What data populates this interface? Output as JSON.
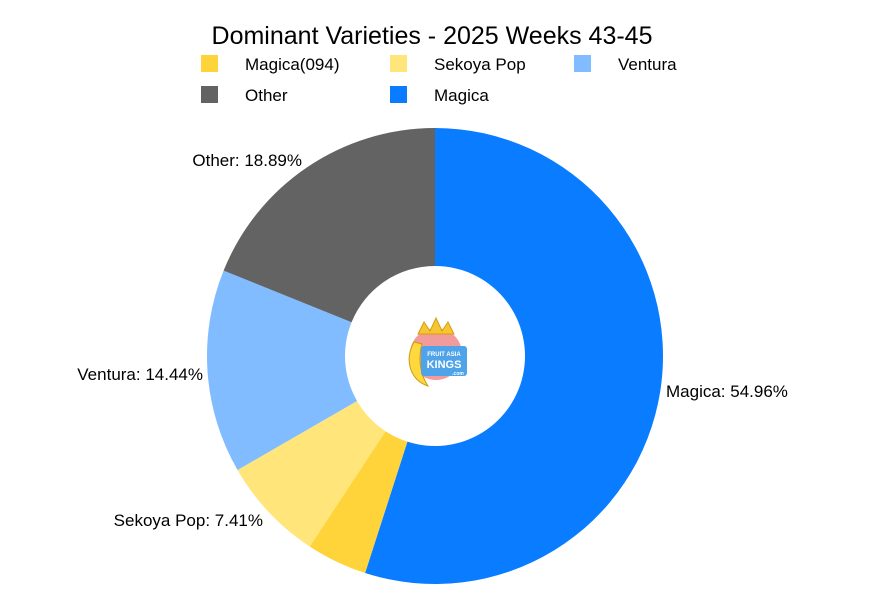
{
  "chart_data": {
    "type": "pie",
    "title": "Dominant Varieties - 2025 Weeks 43-45",
    "donut": true,
    "legend_position": "top",
    "legend": [
      {
        "name": "Magica(094)",
        "color": "#ffd43b"
      },
      {
        "name": "Sekoya Pop",
        "color": "#ffe57a"
      },
      {
        "name": "Ventura",
        "color": "#80bcff"
      },
      {
        "name": "Other",
        "color": "#636363"
      },
      {
        "name": "Magica",
        "color": "#0a7cff"
      }
    ],
    "slices": [
      {
        "name": "Magica",
        "value": 54.96,
        "color": "#0a7cff",
        "label": "Magica: 54.96%"
      },
      {
        "name": "Magica(094)",
        "value": 4.3,
        "color": "#ffd43b",
        "label": ""
      },
      {
        "name": "Sekoya Pop",
        "value": 7.41,
        "color": "#ffe57a",
        "label": "Sekoya Pop: 7.41%"
      },
      {
        "name": "Ventura",
        "value": 14.44,
        "color": "#80bcff",
        "label": "Ventura: 14.44%"
      },
      {
        "name": "Other",
        "value": 18.89,
        "color": "#636363",
        "label": "Other: 18.89%"
      }
    ]
  },
  "logo": {
    "lines": [
      "FRUIT ASIA",
      "KINGS",
      ".com"
    ]
  }
}
